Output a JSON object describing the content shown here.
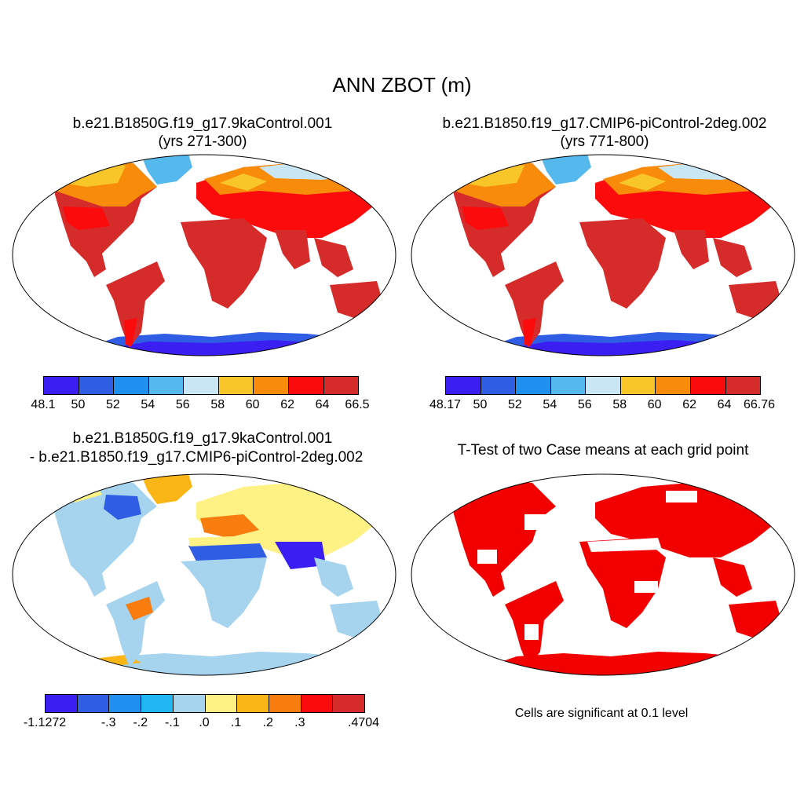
{
  "title": "ANN ZBOT (m)",
  "panels": {
    "case1": {
      "title_line1": "b.e21.B1850G.f19_g17.9kaControl.001",
      "title_line2": "(yrs 271-300)",
      "colorbar_ticks": [
        "48.1",
        "50",
        "52",
        "54",
        "56",
        "58",
        "60",
        "62",
        "64",
        "66.5"
      ]
    },
    "case2": {
      "title_line1": "b.e21.B1850.f19_g17.CMIP6-piControl-2deg.002",
      "title_line2": "(yrs 771-800)",
      "colorbar_ticks": [
        "48.17",
        "50",
        "52",
        "54",
        "56",
        "58",
        "60",
        "62",
        "64",
        "66.76"
      ]
    },
    "diff": {
      "title_line1": "b.e21.B1850G.f19_g17.9kaControl.001",
      "title_line2": "- b.e21.B1850.f19_g17.CMIP6-piControl-2deg.002",
      "colorbar_ticks": [
        "-1.1272",
        "-.3",
        "-.2",
        "-.1",
        ".0",
        ".1",
        ".2",
        ".3",
        ".4704"
      ]
    },
    "ttest": {
      "title_line1": "T-Test of two Case means at each grid point",
      "note": "Cells are significant at 0.1 level"
    }
  },
  "colors": {
    "abs_scale": [
      "#3a1ef2",
      "#2f5de4",
      "#1f8ff0",
      "#55b9ee",
      "#c9e6f5",
      "#f9c629",
      "#f98b0b",
      "#fb0b0b",
      "#d52b2b"
    ],
    "diff_scale": [
      "#3a1ef2",
      "#2f5de4",
      "#1f8ff0",
      "#21b7f2",
      "#a6d3ee",
      "#fdf283",
      "#fab516",
      "#f87c0e",
      "#fb0b0b",
      "#d52b2b"
    ],
    "significant": "#f20000"
  }
}
